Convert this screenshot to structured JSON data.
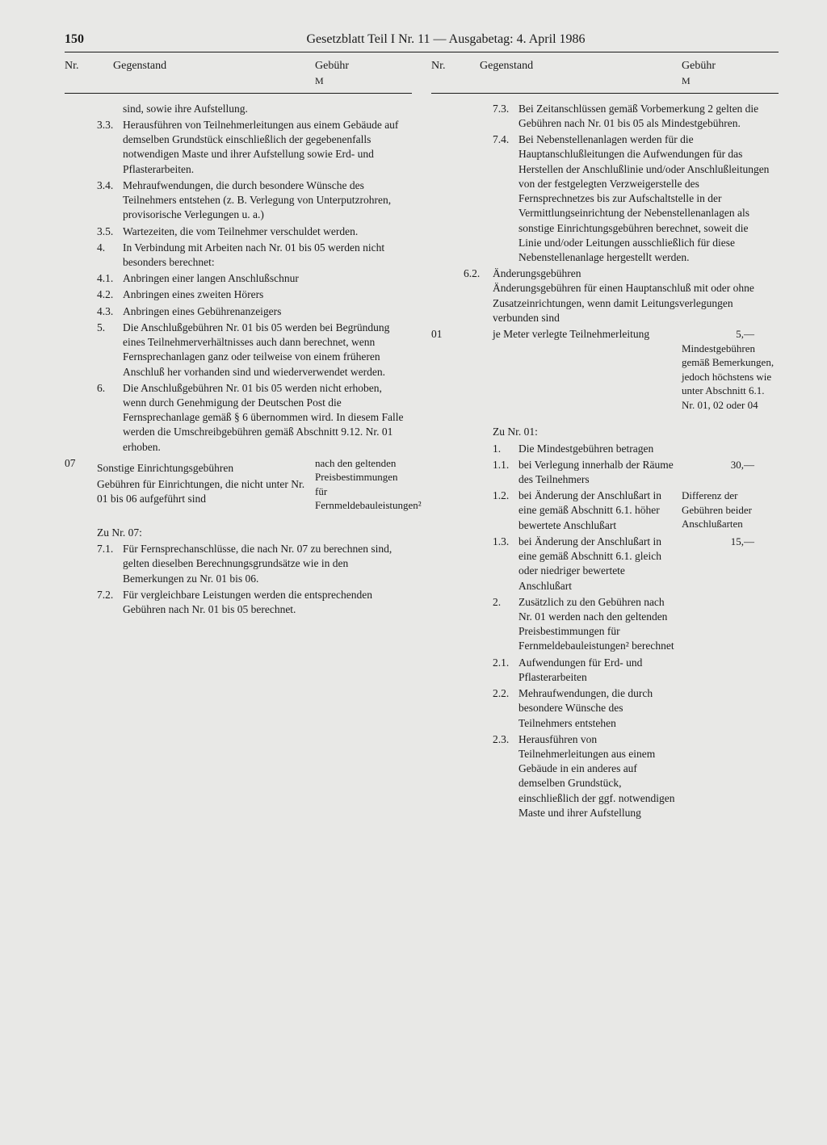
{
  "page_number": "150",
  "header": "Gesetzblatt Teil I Nr. 11 — Ausgabetag: 4. April 1986",
  "col_headers": {
    "nr": "Nr.",
    "subj": "Gegenstand",
    "fee": "Gebühr",
    "fee_sub": "M"
  },
  "left": {
    "items": [
      {
        "num": "",
        "text": "sind, sowie ihre Aufstellung."
      },
      {
        "num": "3.3.",
        "text": "Herausführen von Teilnehmerleitungen aus einem Gebäude auf demselben Grundstück einschließlich der gegebenenfalls notwendigen Maste und ihrer Aufstellung sowie Erd- und Pflasterarbeiten."
      },
      {
        "num": "3.4.",
        "text": "Mehraufwendungen, die durch besondere Wünsche des Teilnehmers entstehen (z. B. Verlegung von Unterputzrohren, provisorische Verlegungen u. a.)"
      },
      {
        "num": "3.5.",
        "text": "Wartezeiten, die vom Teilnehmer verschuldet werden."
      },
      {
        "num": "4.",
        "text": "In Verbindung mit Arbeiten nach Nr. 01 bis 05 werden nicht besonders berechnet:"
      },
      {
        "num": "4.1.",
        "text": "Anbringen einer langen Anschlußschnur"
      },
      {
        "num": "4.2.",
        "text": "Anbringen eines zweiten Hörers"
      },
      {
        "num": "4.3.",
        "text": "Anbringen eines Gebührenanzeigers"
      },
      {
        "num": "5.",
        "text": "Die Anschlußgebühren Nr. 01 bis 05 werden bei Begründung eines Teilnehmerverhältnisses auch dann berechnet, wenn Fernsprechanlagen ganz oder teilweise von einem früheren Anschluß her vorhanden sind und wiederverwendet werden."
      },
      {
        "num": "6.",
        "text": "Die Anschlußgebühren Nr. 01 bis 05 werden nicht erhoben, wenn durch Genehmigung der Deutschen Post die Fernsprechanlage gemäß § 6 übernommen wird. In diesem Falle werden die Umschreibgebühren gemäß Abschnitt 9.12. Nr. 01 erhoben."
      }
    ],
    "section07": {
      "nr": "07",
      "title": "Sonstige Einrichtungsgebühren",
      "body": "Gebühren für Einrichtungen, die nicht unter Nr. 01 bis 06 aufgeführt sind",
      "fee": "nach den geltenden Preisbestimmungen für Fernmeldebauleistungen²"
    },
    "zu07_label": "Zu Nr. 07:",
    "zu07": [
      {
        "num": "7.1.",
        "text": "Für Fernsprechanschlüsse, die nach Nr. 07 zu berechnen sind, gelten dieselben Berechnungsgrundsätze wie in den Bemerkungen zu Nr. 01 bis 06."
      },
      {
        "num": "7.2.",
        "text": "Für vergleichbare Leistungen werden die entsprechenden Gebühren nach Nr. 01 bis 05 berechnet."
      }
    ]
  },
  "right": {
    "top": [
      {
        "num": "7.3.",
        "text": "Bei Zeitanschlüssen gemäß Vorbemerkung 2 gelten die Gebühren nach Nr. 01 bis 05 als Mindestgebühren."
      },
      {
        "num": "7.4.",
        "text": "Bei Nebenstellenanlagen werden für die Hauptanschlußleitungen die Aufwendungen für das Herstellen der Anschlußlinie und/oder Anschlußleitungen von der festgelegten Verzweigerstelle des Fernsprechnetzes bis zur Aufschaltstelle in der Vermittlungseinrichtung der Nebenstellenanlagen als sonstige Einrichtungsgebühren berechnet, soweit die Linie und/oder Leitungen ausschließlich für diese Nebenstellenanlage hergestellt werden."
      }
    ],
    "s62": {
      "num": "6.2.",
      "title": "Änderungsgebühren",
      "body": "Änderungsgebühren für einen Hauptanschluß mit oder ohne Zusatzeinrichtungen, wenn damit Leitungsverlegungen verbunden sind"
    },
    "r01": {
      "nr": "01",
      "text": "je Meter verlegte Teilnehmerleitung",
      "fee1": "5,—",
      "fee2": "Mindestgebühren gemäß Bemerkungen, jedoch höchstens wie unter Abschnitt 6.1. Nr. 01, 02 oder 04"
    },
    "zu01_label": "Zu Nr. 01:",
    "zu01": [
      {
        "num": "1.",
        "text": "Die Mindestgebühren betragen",
        "fee": ""
      },
      {
        "num": "1.1.",
        "text": "bei Verlegung innerhalb der Räume des Teilnehmers",
        "fee": "30,—"
      },
      {
        "num": "1.2.",
        "text": "bei Änderung der Anschlußart in eine gemäß Abschnitt 6.1. höher bewertete Anschlußart",
        "fee": "Differenz der Gebühren beider Anschlußarten"
      },
      {
        "num": "1.3.",
        "text": "bei Änderung der Anschlußart in eine gemäß Abschnitt 6.1. gleich oder niedriger bewertete Anschlußart",
        "fee": "15,—"
      },
      {
        "num": "2.",
        "text": "Zusätzlich zu den Gebühren nach Nr. 01 werden nach den geltenden Preisbestimmungen für Fernmeldebauleistungen² berechnet",
        "fee": ""
      },
      {
        "num": "2.1.",
        "text": "Aufwendungen für Erd- und Pflasterarbeiten",
        "fee": ""
      },
      {
        "num": "2.2.",
        "text": "Mehraufwendungen, die durch besondere Wünsche des Teilnehmers entstehen",
        "fee": ""
      },
      {
        "num": "2.3.",
        "text": "Herausführen von Teilnehmerleitungen aus einem Gebäude in ein anderes auf demselben Grundstück, einschließlich der ggf. notwendigen Maste und ihrer Aufstellung",
        "fee": ""
      }
    ]
  }
}
